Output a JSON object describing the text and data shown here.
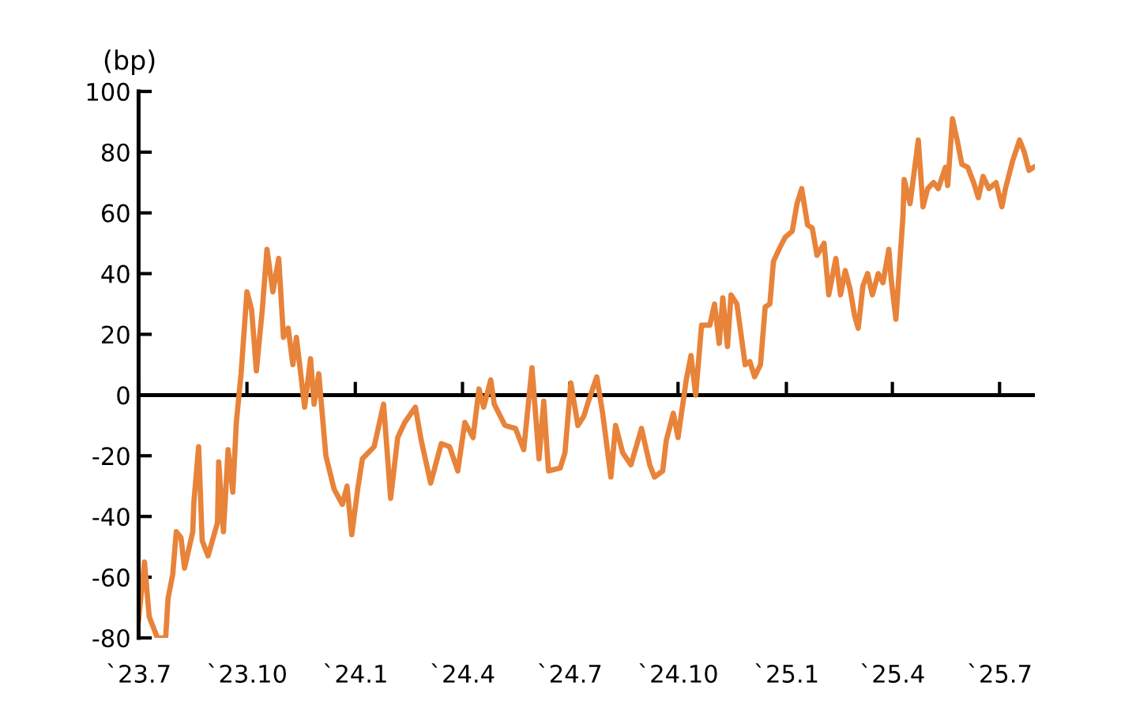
{
  "chart_data": {
    "type": "line",
    "ylabel": "(bp)",
    "xlim": [
      "2023-07-01",
      "2025-07-31"
    ],
    "ylim": [
      -80,
      100
    ],
    "yticks": [
      -80,
      -60,
      -40,
      -20,
      0,
      20,
      40,
      60,
      80,
      100
    ],
    "xticks": [
      {
        "value": "2023-07-01",
        "label": "`23.7"
      },
      {
        "value": "2023-10-01",
        "label": "`23.10"
      },
      {
        "value": "2024-01-01",
        "label": "`24.1"
      },
      {
        "value": "2024-04-01",
        "label": "`24.4"
      },
      {
        "value": "2024-07-01",
        "label": "`24.7"
      },
      {
        "value": "2024-10-01",
        "label": "`24.10"
      },
      {
        "value": "2025-01-01",
        "label": "`25.1"
      },
      {
        "value": "2025-04-01",
        "label": "`25.4"
      },
      {
        "value": "2025-07-01",
        "label": "`25.7"
      }
    ],
    "grid": false,
    "marker": "none",
    "line_style": "solid",
    "ref_lines": [
      {
        "axis": "y",
        "value": 0,
        "color": "#000000"
      }
    ],
    "x": [
      "2023-07-01",
      "2023-07-06",
      "2023-07-10",
      "2023-07-17",
      "2023-07-24",
      "2023-07-26",
      "2023-07-30",
      "2023-08-02",
      "2023-08-06",
      "2023-08-09",
      "2023-08-16",
      "2023-08-17",
      "2023-08-21",
      "2023-08-24",
      "2023-08-29",
      "2023-09-06",
      "2023-09-07",
      "2023-09-11",
      "2023-09-15",
      "2023-09-19",
      "2023-09-22",
      "2023-09-26",
      "2023-10-01",
      "2023-10-05",
      "2023-10-09",
      "2023-10-14",
      "2023-10-18",
      "2023-10-23",
      "2023-10-28",
      "2023-11-01",
      "2023-11-05",
      "2023-11-09",
      "2023-11-12",
      "2023-11-19",
      "2023-11-24",
      "2023-11-27",
      "2023-12-01",
      "2023-12-07",
      "2023-12-14",
      "2023-12-21",
      "2023-12-25",
      "2023-12-29",
      "2024-01-03",
      "2024-01-07",
      "2024-01-17",
      "2024-01-25",
      "2024-01-31",
      "2024-02-06",
      "2024-02-12",
      "2024-02-21",
      "2024-02-26",
      "2024-03-05",
      "2024-03-14",
      "2024-03-21",
      "2024-03-28",
      "2024-04-03",
      "2024-04-10",
      "2024-04-15",
      "2024-04-19",
      "2024-04-25",
      "2024-04-28",
      "2024-05-07",
      "2024-05-16",
      "2024-05-23",
      "2024-05-30",
      "2024-06-05",
      "2024-06-09",
      "2024-06-13",
      "2024-06-23",
      "2024-06-27",
      "2024-07-02",
      "2024-07-08",
      "2024-07-13",
      "2024-07-17",
      "2024-07-24",
      "2024-07-29",
      "2024-08-05",
      "2024-08-09",
      "2024-08-15",
      "2024-08-22",
      "2024-08-31",
      "2024-09-07",
      "2024-09-11",
      "2024-09-18",
      "2024-09-21",
      "2024-09-27",
      "2024-10-01",
      "2024-10-08",
      "2024-10-12",
      "2024-10-16",
      "2024-10-21",
      "2024-10-28",
      "2024-11-01",
      "2024-11-05",
      "2024-11-08",
      "2024-11-12",
      "2024-11-15",
      "2024-11-20",
      "2024-11-27",
      "2024-12-01",
      "2024-12-05",
      "2024-12-10",
      "2024-12-14",
      "2024-12-18",
      "2024-12-21",
      "2024-12-27",
      "2024-12-31",
      "2025-01-06",
      "2025-01-10",
      "2025-01-14",
      "2025-01-19",
      "2025-01-23",
      "2025-01-27",
      "2025-02-02",
      "2025-02-06",
      "2025-02-12",
      "2025-02-16",
      "2025-02-20",
      "2025-02-24",
      "2025-02-28",
      "2025-03-03",
      "2025-03-07",
      "2025-03-11",
      "2025-03-15",
      "2025-03-20",
      "2025-03-24",
      "2025-03-29",
      "2025-03-31",
      "2025-04-04",
      "2025-04-10",
      "2025-04-11",
      "2025-04-16",
      "2025-04-23",
      "2025-04-27",
      "2025-05-01",
      "2025-05-06",
      "2025-05-10",
      "2025-05-16",
      "2025-05-18",
      "2025-05-22",
      "2025-05-26",
      "2025-05-30",
      "2025-06-04",
      "2025-06-09",
      "2025-06-13",
      "2025-06-17",
      "2025-06-22",
      "2025-06-28",
      "2025-07-03",
      "2025-07-06",
      "2025-07-12",
      "2025-07-18",
      "2025-07-22",
      "2025-07-26",
      "2025-07-30"
    ],
    "series": [
      {
        "color": "#e8833a",
        "values": [
          -74,
          -55,
          -73,
          -80,
          -80,
          -67,
          -59,
          -45,
          -47,
          -57,
          -45,
          -35,
          -17,
          -48,
          -53,
          -42,
          -22,
          -45,
          -18,
          -32,
          -9,
          7,
          34,
          28,
          8,
          28,
          48,
          34,
          45,
          19,
          22,
          10,
          19,
          -4,
          12,
          -3,
          7,
          -20,
          -31,
          -36,
          -30,
          -46,
          -31,
          -21,
          -17,
          -3,
          -34,
          -14,
          -9,
          -4,
          -15,
          -29,
          -16,
          -17,
          -25,
          -9,
          -14,
          2,
          -4,
          5,
          -3,
          -10,
          -11,
          -18,
          9,
          -21,
          -2,
          -25,
          -24,
          -19,
          4,
          -10,
          -7,
          -2,
          6,
          -6,
          -27,
          -10,
          -19,
          -23,
          -11,
          -23,
          -27,
          -25,
          -15,
          -6,
          -14,
          5,
          13,
          0,
          23,
          23,
          30,
          17,
          32,
          16,
          33,
          30,
          10,
          11,
          6,
          10,
          29,
          30,
          44,
          49,
          52,
          54,
          63,
          68,
          56,
          55,
          46,
          50,
          33,
          45,
          33,
          41,
          35,
          26,
          22,
          36,
          40,
          33,
          40,
          37,
          48,
          38,
          25,
          59,
          71,
          63,
          84,
          62,
          68,
          70,
          68,
          75,
          69,
          91,
          84,
          76,
          75,
          70,
          65,
          72,
          68,
          70,
          62,
          68,
          77,
          84,
          80,
          74,
          75
        ]
      }
    ]
  }
}
